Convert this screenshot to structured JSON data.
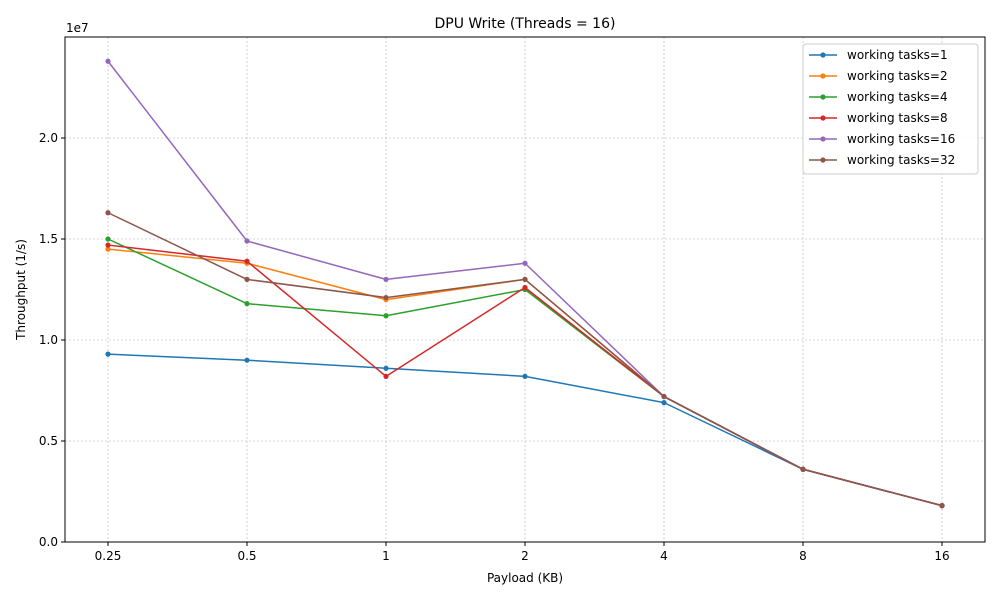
{
  "chart_data": {
    "type": "line",
    "title": "DPU Write (Threads = 16)",
    "xlabel": "Payload (KB)",
    "ylabel": "Throughput (1/s)",
    "y_offset_label": "1e7",
    "x": [
      "0.25",
      "0.5",
      "1",
      "2",
      "4",
      "8",
      "16"
    ],
    "ylim": [
      0,
      25000000
    ],
    "yticks": [
      0,
      5000000,
      10000000,
      15000000,
      20000000
    ],
    "ytick_labels": [
      "0.0",
      "0.5",
      "1.0",
      "1.5",
      "2.0"
    ],
    "grid": true,
    "legend_position": "top-right",
    "series": [
      {
        "name": "working tasks=1",
        "color": "#1f77b4",
        "values": [
          9300000,
          9000000,
          8600000,
          8200000,
          6900000,
          3600000,
          1800000
        ]
      },
      {
        "name": "working tasks=2",
        "color": "#ff7f0e",
        "values": [
          14500000,
          13800000,
          12000000,
          13000000,
          7200000,
          3600000,
          1800000
        ]
      },
      {
        "name": "working tasks=4",
        "color": "#2ca02c",
        "values": [
          15000000,
          11800000,
          11200000,
          12500000,
          7200000,
          3600000,
          1800000
        ]
      },
      {
        "name": "working tasks=8",
        "color": "#d62728",
        "values": [
          14700000,
          13900000,
          8200000,
          12600000,
          7200000,
          3600000,
          1800000
        ]
      },
      {
        "name": "working tasks=16",
        "color": "#9467bd",
        "values": [
          23800000,
          14900000,
          13000000,
          13800000,
          7200000,
          3600000,
          1800000
        ]
      },
      {
        "name": "working tasks=32",
        "color": "#8c564b",
        "values": [
          16300000,
          13000000,
          12100000,
          13000000,
          7200000,
          3600000,
          1800000
        ]
      }
    ]
  }
}
